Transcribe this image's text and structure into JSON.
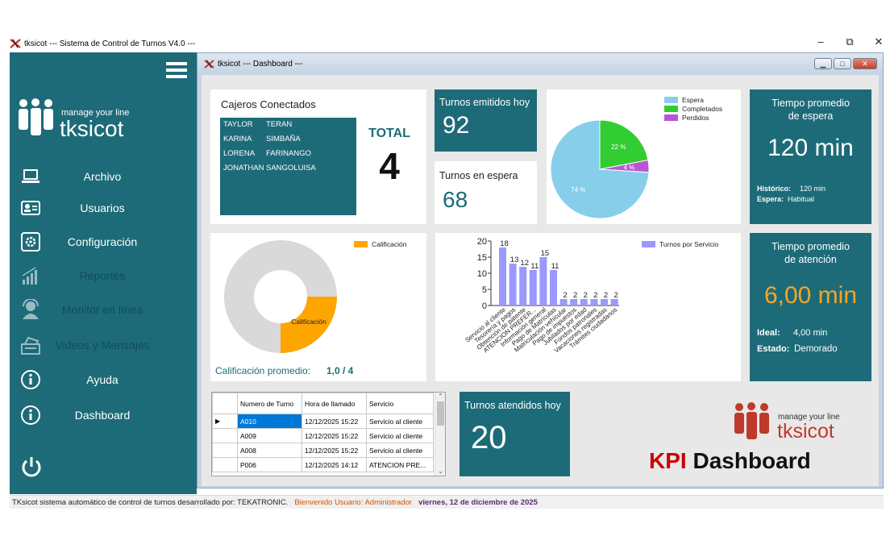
{
  "app": {
    "title": "tksicot  --- Sistema de Control de Turnos V4.0 ---"
  },
  "window_controls": {
    "minimize": "–",
    "restore": "⧉",
    "close": "✕"
  },
  "inner_window": {
    "title": "tksicot --- Dashboard ---"
  },
  "sidebar": {
    "logo_tagline": "manage your line",
    "logo_name": "tksicot",
    "items": [
      {
        "label": "Archivo",
        "icon": "laptop-icon"
      },
      {
        "label": "Usuarios",
        "icon": "id-card-icon"
      },
      {
        "label": "Configuración",
        "icon": "gear-icon"
      },
      {
        "label": "Reportes",
        "icon": "bar-chart-icon"
      },
      {
        "label": "Monitor en línea",
        "icon": "headset-user-icon"
      },
      {
        "label": "Videos y Mensajes",
        "icon": "cash-register-icon"
      },
      {
        "label": "Ayuda",
        "icon": "info-icon"
      },
      {
        "label": "Dashboard",
        "icon": "info-icon"
      }
    ],
    "power_icon": "power-icon"
  },
  "cajeros": {
    "title": "Cajeros Conectados",
    "rows": [
      {
        "first": "TAYLOR",
        "last": "TERAN"
      },
      {
        "first": "KARINA",
        "last": "SIMBAÑA"
      },
      {
        "first": "LORENA",
        "last": "FARINANGO"
      },
      {
        "first": "JONATHAN",
        "last": "SANGOLUISA"
      }
    ],
    "total_label": "TOTAL",
    "total_value": "4"
  },
  "turnos_emitidos": {
    "label": "Turnos emitidos hoy",
    "value": "92"
  },
  "turnos_espera": {
    "label": "Turnos en espera",
    "value": "68"
  },
  "pie_status": {
    "legend": [
      "Espera",
      "Completados",
      "Perdidos"
    ],
    "colors": [
      "#87ceeb",
      "#32cd32",
      "#ba55d3"
    ],
    "values": [
      74,
      22,
      4
    ],
    "labels": [
      "74 %",
      "22 %",
      "4 %"
    ]
  },
  "tiempo_espera": {
    "title_line1": "Tiempo promedio",
    "title_line2": "de espera",
    "value": "120 min",
    "hist_label": "Histórico:",
    "hist_value": "120 min",
    "espera_label": "Espera:",
    "espera_value": "Habitual"
  },
  "calificacion": {
    "legend": "Calificación",
    "slice_label": "Calificación",
    "color": "#ffa500",
    "value": 1.0,
    "max": 4,
    "avg_label": "Calificación promedio:",
    "avg_value": "1,0 / 4"
  },
  "chart_data": {
    "type": "bar",
    "legend": "Turnos por Servicio",
    "color": "#9999ff",
    "categories": [
      "Servicio al cliente",
      "Tesorería y pagos",
      "Obtención de patente",
      "ATENCION PREFER...",
      "Información general",
      "Pago de Matrículas",
      "Matriculación vehicular",
      "Pago de impuestos",
      "Jubilados por edad",
      "Fondos patronales",
      "Vacaciones registradas",
      "Trámites ciudadanos"
    ],
    "values": [
      18,
      13,
      12,
      11,
      15,
      11,
      2,
      2,
      2,
      2,
      2,
      2
    ],
    "ylim": [
      0,
      20
    ],
    "yticks": [
      "20",
      "15",
      "10",
      "5",
      "0"
    ]
  },
  "tiempo_atencion": {
    "title_line1": "Tiempo promedio",
    "title_line2": "de atención",
    "value": "6,00 min",
    "value_color": "#f5a623",
    "ideal_label": "Ideal:",
    "ideal_value": "4,00 min",
    "estado_label": "Estado:",
    "estado_value": "Demorado"
  },
  "grid": {
    "headers": [
      "Numero de Turno",
      "Hora de llamado",
      "Servicio"
    ],
    "rows": [
      {
        "turno": "A010",
        "hora": "12/12/2025 15:22",
        "servicio": "Servicio al cliente"
      },
      {
        "turno": "A009",
        "hora": "12/12/2025 15:22",
        "servicio": "Servicio al cliente"
      },
      {
        "turno": "A008",
        "hora": "12/12/2025 15:22",
        "servicio": "Servicio al cliente"
      },
      {
        "turno": "P006",
        "hora": "12/12/2025 14:12",
        "servicio": "ATENCION PRE..."
      }
    ]
  },
  "turnos_atendidos": {
    "label": "Turnos atendidos hoy",
    "value": "20"
  },
  "brand": {
    "tagline": "manage your line",
    "name": "tksicot",
    "kpi": "KPI Dashboard"
  },
  "status": {
    "text1": "TKsicot sistema automático de control de turnos desarrollado por: TEKATRONIC.",
    "text2": "Bienvenido  Usuario: Administrador",
    "text3": "viernes, 12 de diciembre de 2025"
  }
}
